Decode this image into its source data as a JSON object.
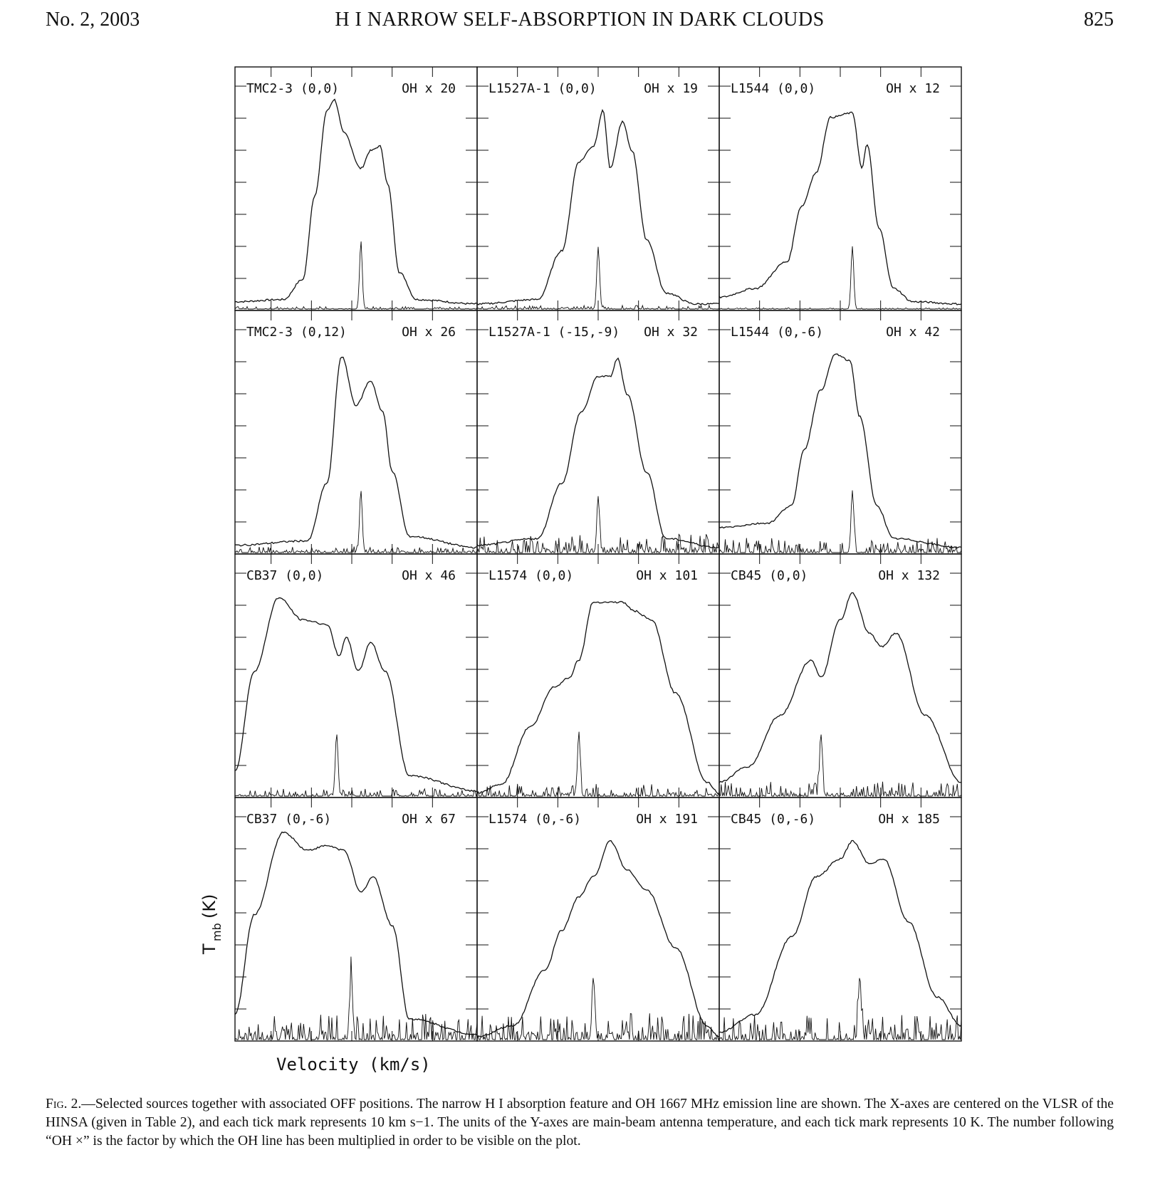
{
  "header": {
    "issue": "No. 2, 2003",
    "title": "H I NARROW SELF-ABSORPTION IN DARK CLOUDS",
    "page_number": "825"
  },
  "figure": {
    "ylabel_main": "T",
    "ylabel_sub": "mb",
    "ylabel_unit": "(K)",
    "xlabel": "Velocity (km/s)",
    "panels": [
      {
        "source": "TMC2-3 (0,0)",
        "oh_factor": "OH x 20"
      },
      {
        "source": "L1527A-1 (0,0)",
        "oh_factor": "OH x 19"
      },
      {
        "source": "L1544 (0,0)",
        "oh_factor": "OH x 12"
      },
      {
        "source": "TMC2-3 (0,12)",
        "oh_factor": "OH x 26"
      },
      {
        "source": "L1527A-1 (-15,-9)",
        "oh_factor": "OH x 32"
      },
      {
        "source": "L1544 (0,-6)",
        "oh_factor": "OH x 42"
      },
      {
        "source": "CB37 (0,0)",
        "oh_factor": "OH x 46"
      },
      {
        "source": "L1574 (0,0)",
        "oh_factor": "OH x 101"
      },
      {
        "source": "CB45 (0,0)",
        "oh_factor": "OH x 132"
      },
      {
        "source": "CB37 (0,-6)",
        "oh_factor": "OH x 67"
      },
      {
        "source": "L1574 (0,-6)",
        "oh_factor": "OH x 191"
      },
      {
        "source": "CB45 (0,-6)",
        "oh_factor": "OH x 185"
      }
    ]
  },
  "caption": {
    "label": "Fig. 2.",
    "text": "—Selected sources together with associated OFF positions. The narrow H I absorption feature and OH 1667 MHz emission line are shown. The X-axes are centered on the VLSR of the HINSA (given in Table 2), and each tick mark represents 10 km s−1. The units of the Y-axes are main-beam antenna temperature, and each tick mark represents 10 K. The number following “OH ×” is the factor by which the OH line has been multiplied in order to be visible on the plot."
  }
}
